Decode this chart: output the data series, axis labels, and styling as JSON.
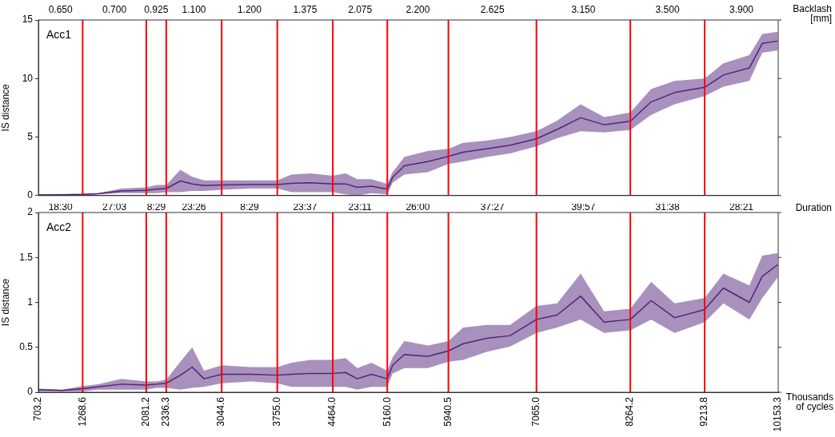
{
  "chart_data": [
    {
      "type": "line",
      "ylabel": "IS distance",
      "x2label": "Backlash [mm]",
      "tick_labels": "y",
      "annotations": [
        "Acc1",
        "0.650",
        "0.700",
        "0.925",
        "1.100",
        "1.200",
        "1.375",
        "2.075",
        "2.200",
        "2.625",
        "3.150",
        "3.500",
        "3.900"
      ],
      "x": [
        703.2,
        1008.8,
        1268.6,
        1463.9,
        1764.3,
        2081.2,
        2215.1,
        2336.3,
        2516.7,
        2667.8,
        2818.9,
        3044.6,
        3424.1,
        3755,
        3936.6,
        4176.8,
        4464,
        4627,
        4777.2,
        4957.4,
        5160,
        5227.5,
        5377.6,
        5677.8,
        5940.5,
        6128.2,
        6428.4,
        6728.8,
        7065,
        7329.2,
        7629.4,
        7929.6,
        8264.2,
        8529.9,
        8830.1,
        9213.8,
        9453.1,
        9784.5,
        9950.2,
        10149
      ],
      "series": [
        {
          "color": "#51237a",
          "values": [
            0.05,
            0.08,
            0.1,
            0.15,
            0.4,
            0.45,
            0.55,
            0.6,
            1.25,
            1.0,
            0.85,
            0.9,
            0.95,
            0.95,
            1.05,
            1.1,
            1.0,
            1.0,
            0.7,
            0.8,
            0.55,
            1.55,
            2.55,
            2.9,
            3.35,
            3.7,
            4.0,
            4.3,
            4.85,
            5.65,
            6.65,
            6.05,
            6.35,
            8.0,
            8.8,
            9.25,
            10.3,
            10.9,
            13.0,
            13.2
          ],
          "lower": [
            0,
            0.05,
            0.05,
            0.1,
            0.2,
            0.2,
            0.2,
            0.3,
            0.3,
            0.4,
            0.4,
            0.5,
            0.6,
            0.6,
            0.3,
            0.3,
            0.3,
            0.1,
            0,
            0.2,
            0.1,
            1.1,
            1.8,
            2.0,
            2.7,
            2.9,
            3.3,
            3.6,
            4.2,
            4.9,
            5.5,
            5.4,
            5.6,
            6.9,
            7.8,
            8.5,
            9.3,
            9.8,
            12.2,
            12.4
          ],
          "upper": [
            0.1,
            0.1,
            0.15,
            0.2,
            0.6,
            0.7,
            0.9,
            0.9,
            2.2,
            1.6,
            1.3,
            1.3,
            1.3,
            1.3,
            1.8,
            1.9,
            1.7,
            1.9,
            1.4,
            1.4,
            1.0,
            2.0,
            3.3,
            3.8,
            4.0,
            4.5,
            4.7,
            5.0,
            5.5,
            6.4,
            7.8,
            6.7,
            7.1,
            9.1,
            9.8,
            10,
            11.3,
            12,
            13.8,
            14
          ]
        }
      ],
      "xlim": [
        703.2,
        10153.3
      ],
      "xticks": [
        703.2,
        1268.6,
        2081.2,
        2336.3,
        3044.6,
        3755,
        4464,
        5160,
        5940.5,
        7065,
        8264.2,
        9213.8,
        10153.3
      ],
      "ylim": [
        0,
        15
      ],
      "yticks": [
        0,
        5,
        10,
        15
      ],
      "ref_lines": [
        {
          "axis": "x",
          "value": 1268.6,
          "color": "#ff0000"
        },
        {
          "axis": "x",
          "value": 2081.2,
          "color": "#ff0000"
        },
        {
          "axis": "x",
          "value": 2336.3,
          "color": "#ff0000"
        },
        {
          "axis": "x",
          "value": 3044.6,
          "color": "#ff0000"
        },
        {
          "axis": "x",
          "value": 3755,
          "color": "#ff0000"
        },
        {
          "axis": "x",
          "value": 4464,
          "color": "#ff0000"
        },
        {
          "axis": "x",
          "value": 5160,
          "color": "#ff0000"
        },
        {
          "axis": "x",
          "value": 5940.5,
          "color": "#ff0000"
        },
        {
          "axis": "x",
          "value": 7065,
          "color": "#ff0000"
        },
        {
          "axis": "x",
          "value": 8264.2,
          "color": "#ff0000"
        },
        {
          "axis": "x",
          "value": 9213.8,
          "color": "#ff0000"
        }
      ]
    },
    {
      "type": "line",
      "ylabel": "IS distance",
      "xlabel": "Thousands of cycles",
      "x2label": "Duration",
      "annotations": [
        "Acc2",
        "18:30",
        "27:03",
        "8:29",
        "23:26",
        "8:29",
        "23:37",
        "23:11",
        "26:00",
        "37:27",
        "39:57",
        "31:38",
        "28:21"
      ],
      "x": [
        703.2,
        1008.8,
        1268.6,
        1463.9,
        1764.3,
        2081.2,
        2215.1,
        2336.3,
        2516.7,
        2667.8,
        2818.9,
        3044.6,
        3424.1,
        3755,
        3936.6,
        4176.8,
        4464,
        4627,
        4777.2,
        4957.4,
        5160,
        5227.5,
        5377.6,
        5677.8,
        5940.5,
        6128.2,
        6428.4,
        6728.8,
        7065,
        7329.2,
        7629.4,
        7929.6,
        8264.2,
        8529.9,
        8830.1,
        9213.8,
        9453.1,
        9784.5,
        9950.2,
        10149
      ],
      "series": [
        {
          "color": "#51237a",
          "values": [
            0.03,
            0.02,
            0.04,
            0.06,
            0.09,
            0.08,
            0.09,
            0.1,
            0.19,
            0.28,
            0.15,
            0.2,
            0.2,
            0.19,
            0.2,
            0.21,
            0.21,
            0.22,
            0.15,
            0.2,
            0.15,
            0.3,
            0.42,
            0.4,
            0.46,
            0.54,
            0.6,
            0.63,
            0.81,
            0.86,
            1.07,
            0.78,
            0.81,
            1.02,
            0.83,
            0.92,
            1.16,
            1.0,
            1.29,
            1.42
          ],
          "lower": [
            0.01,
            0.01,
            0.01,
            0.03,
            0.03,
            0.03,
            0.05,
            0.05,
            0.03,
            0.05,
            0.06,
            0.1,
            0.12,
            0.1,
            0.06,
            0.06,
            0.06,
            0.06,
            0.03,
            0.06,
            0.06,
            0.21,
            0.27,
            0.27,
            0.34,
            0.36,
            0.45,
            0.51,
            0.66,
            0.72,
            0.81,
            0.66,
            0.69,
            0.81,
            0.66,
            0.78,
            0.99,
            0.81,
            1.05,
            1.28
          ],
          "upper": [
            0.04,
            0.03,
            0.07,
            0.09,
            0.15,
            0.12,
            0.12,
            0.14,
            0.34,
            0.5,
            0.24,
            0.3,
            0.28,
            0.28,
            0.33,
            0.36,
            0.36,
            0.38,
            0.27,
            0.33,
            0.24,
            0.39,
            0.57,
            0.52,
            0.57,
            0.72,
            0.75,
            0.75,
            0.96,
            0.99,
            1.32,
            0.9,
            0.93,
            1.23,
            0.99,
            1.05,
            1.32,
            1.19,
            1.52,
            1.55
          ]
        }
      ],
      "xlim": [
        703.2,
        10153.3
      ],
      "xticks": [
        703.2,
        1268.6,
        2081.2,
        2336.3,
        3044.6,
        {
          "value": 3755,
          "label": "3755.0"
        },
        {
          "value": 4464,
          "label": "4464.0"
        },
        {
          "value": 5160,
          "label": "5160.0"
        },
        5940.5,
        {
          "value": 7065,
          "label": "7065.0"
        },
        8264.2,
        9213.8,
        10153.3
      ],
      "ylim": [
        0,
        2
      ],
      "yticks": [
        0,
        0.5,
        1,
        1.5,
        2
      ],
      "ref_lines": [
        {
          "axis": "x",
          "value": 1268.6,
          "color": "#ff0000"
        },
        {
          "axis": "x",
          "value": 2081.2,
          "color": "#ff0000"
        },
        {
          "axis": "x",
          "value": 2336.3,
          "color": "#ff0000"
        },
        {
          "axis": "x",
          "value": 3044.6,
          "color": "#ff0000"
        },
        {
          "axis": "x",
          "value": 3755,
          "color": "#ff0000"
        },
        {
          "axis": "x",
          "value": 4464,
          "color": "#ff0000"
        },
        {
          "axis": "x",
          "value": 5160,
          "color": "#ff0000"
        },
        {
          "axis": "x",
          "value": 5940.5,
          "color": "#ff0000"
        },
        {
          "axis": "x",
          "value": 7065,
          "color": "#ff0000"
        },
        {
          "axis": "x",
          "value": 8264.2,
          "color": "#ff0000"
        },
        {
          "axis": "x",
          "value": 9213.8,
          "color": "#ff0000"
        }
      ]
    }
  ]
}
